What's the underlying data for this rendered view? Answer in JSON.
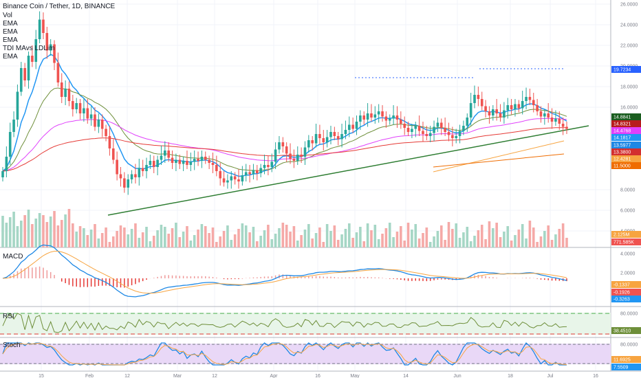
{
  "header": {
    "title": "Binance Coin / Tether, 1D, BINANCE",
    "indicators": [
      "Vol",
      "EMA",
      "EMA",
      "EMA",
      "TDI MAvs",
      "EMA"
    ],
    "td_fragment": "LDLim"
  },
  "panes": {
    "macd_label": "MACD",
    "rsi_label": "RSI",
    "stoch_label": "Stoch"
  },
  "colors": {
    "up": "#26a69a",
    "down": "#ef5350",
    "ema_blue": "#2196f3",
    "ema_green": "#6e8f3a",
    "ema_red": "#e53935",
    "ema_pink": "#e040fb",
    "ema_orange": "#f7a440",
    "trend": "#2e7d32",
    "target": "#2962ff"
  },
  "chart_data": {
    "type": "candlestick",
    "xaxis_ticks": [
      "15",
      "Feb",
      "12",
      "Mar",
      "12",
      "Apr",
      "16",
      "May",
      "14",
      "Jun",
      "18",
      "Jul",
      "16"
    ],
    "price_ticks": [
      "26.0000",
      "24.0000",
      "22.0000",
      "20.0000",
      "18.0000",
      "16.0000",
      "8.0000",
      "6.0000",
      "4.0000"
    ],
    "price_tags": [
      {
        "value": "19.7234",
        "color": "#2962ff"
      },
      {
        "value": "14.8841",
        "color": "#1b5e20"
      },
      {
        "value": "14.8321",
        "color": "#b71c1c"
      },
      {
        "value": "14.4768",
        "color": "#e040fb"
      },
      {
        "value": "14.1817",
        "color": "#2196f3"
      },
      {
        "value": "13.5977",
        "color": "#1e88e5"
      },
      {
        "value": "13.3800",
        "color": "#d32f2f"
      },
      {
        "value": "12.4281",
        "color": "#f7a440"
      },
      {
        "value": "11.5000",
        "color": "#ef6c00"
      }
    ],
    "volume_tags": [
      {
        "value": "2.125M",
        "color": "#f7a440"
      },
      {
        "value": "771.585K",
        "color": "#ef5350"
      }
    ],
    "macd_ticks": [
      "4.0000",
      "2.0000"
    ],
    "macd_tags": [
      {
        "value": "-0.1337",
        "color": "#f7a440"
      },
      {
        "value": "-0.1926",
        "color": "#ef5350"
      },
      {
        "value": "-0.3263",
        "color": "#2196f3"
      }
    ],
    "rsi_ticks": [
      "80.0000"
    ],
    "rsi_tags": [
      {
        "value": "38.4510",
        "color": "#6e8f3a"
      }
    ],
    "stoch_ticks": [
      "80.0000"
    ],
    "stoch_tags": [
      {
        "value": "11.6925",
        "color": "#f7a440"
      },
      {
        "value": "7.5509",
        "color": "#2196f3"
      }
    ],
    "closes": [
      9.8,
      11.2,
      13.6,
      14.8,
      17.5,
      19.8,
      18.6,
      21.0,
      20.4,
      22.6,
      24.5,
      23.2,
      21.5,
      22.1,
      20.3,
      18.4,
      17.0,
      17.8,
      16.6,
      15.8,
      16.4,
      15.4,
      15.9,
      14.9,
      15.3,
      14.1,
      14.8,
      13.9,
      13.2,
      12.0,
      10.9,
      9.5,
      9.1,
      8.2,
      9.0,
      9.5,
      9.2,
      10.1,
      9.8,
      10.4,
      10.8,
      10.2,
      10.9,
      11.3,
      11.8,
      11.1,
      10.6,
      10.9,
      10.5,
      10.8,
      10.4,
      10.7,
      11.0,
      10.8,
      11.2,
      10.9,
      10.6,
      10.4,
      9.8,
      9.1,
      8.7,
      8.9,
      9.3,
      9.0,
      8.8,
      9.4,
      9.7,
      9.5,
      9.9,
      9.6,
      10.1,
      10.4,
      10.2,
      10.7,
      11.9,
      12.6,
      12.2,
      11.5,
      11.0,
      10.8,
      11.4,
      11.2,
      12.1,
      12.8,
      12.5,
      13.4,
      13.0,
      12.6,
      13.1,
      13.6,
      13.2,
      12.9,
      13.4,
      13.8,
      14.3,
      13.9,
      14.6,
      15.2,
      14.8,
      15.4,
      15.0,
      15.3,
      15.6,
      15.1,
      14.7,
      14.9,
      15.2,
      14.8,
      14.4,
      14.0,
      13.6,
      13.9,
      14.2,
      13.7,
      13.4,
      13.2,
      13.5,
      14.1,
      14.5,
      14.0,
      13.6,
      13.3,
      13.0,
      13.2,
      13.7,
      14.2,
      15.0,
      16.4,
      17.2,
      16.8,
      16.1,
      15.6,
      15.2,
      15.8,
      15.4,
      15.0,
      15.7,
      16.2,
      15.8,
      16.3,
      15.9,
      16.6,
      17.0,
      16.7,
      16.2,
      15.6,
      15.1,
      15.4,
      15.0,
      14.6,
      14.9,
      14.4,
      14.1,
      13.9
    ]
  }
}
